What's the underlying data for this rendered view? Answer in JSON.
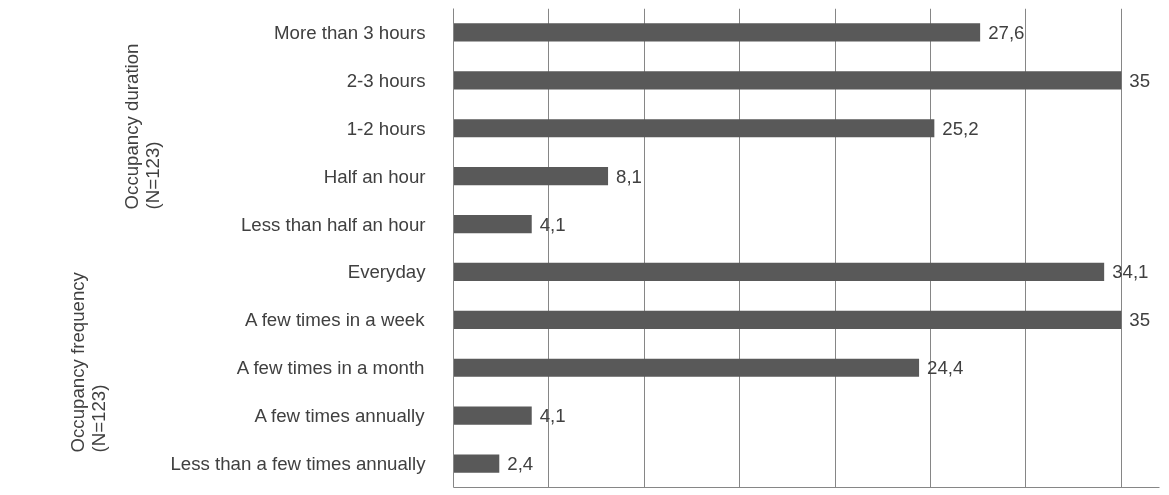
{
  "chart_data": {
    "type": "bar",
    "orientation": "horizontal",
    "categories": [
      "More than 3 hours",
      "2-3 hours",
      "1-2 hours",
      "Half an hour",
      "Less than half an hour",
      "Everyday",
      "A few times in a week",
      "A few times in a month",
      "A few times annually",
      "Less than a few times annually"
    ],
    "values": [
      27.6,
      35,
      25.2,
      8.1,
      4.1,
      34.1,
      35,
      24.4,
      4.1,
      2.4
    ],
    "value_labels": [
      "27,6",
      "35",
      "25,2",
      "8,1",
      "4,1",
      "34,1",
      "35",
      "24,4",
      "4,1",
      "2,4"
    ],
    "color": "#595959",
    "xlim": [
      0,
      37
    ],
    "xticks": [
      {
        "value": 0,
        "label": null
      },
      {
        "value": 5,
        "label": null
      },
      {
        "value": 10,
        "label": null
      },
      {
        "value": 15,
        "label": null
      },
      {
        "value": 20,
        "label": null
      },
      {
        "value": 25,
        "label": null
      },
      {
        "value": 30,
        "label": null
      },
      {
        "value": 35,
        "label": null
      }
    ],
    "tick_labels": "y",
    "grid": "x",
    "annotations": [
      "Occupancy duration\n(N=123)",
      "Occupancy frequency\n(N=123)"
    ]
  }
}
